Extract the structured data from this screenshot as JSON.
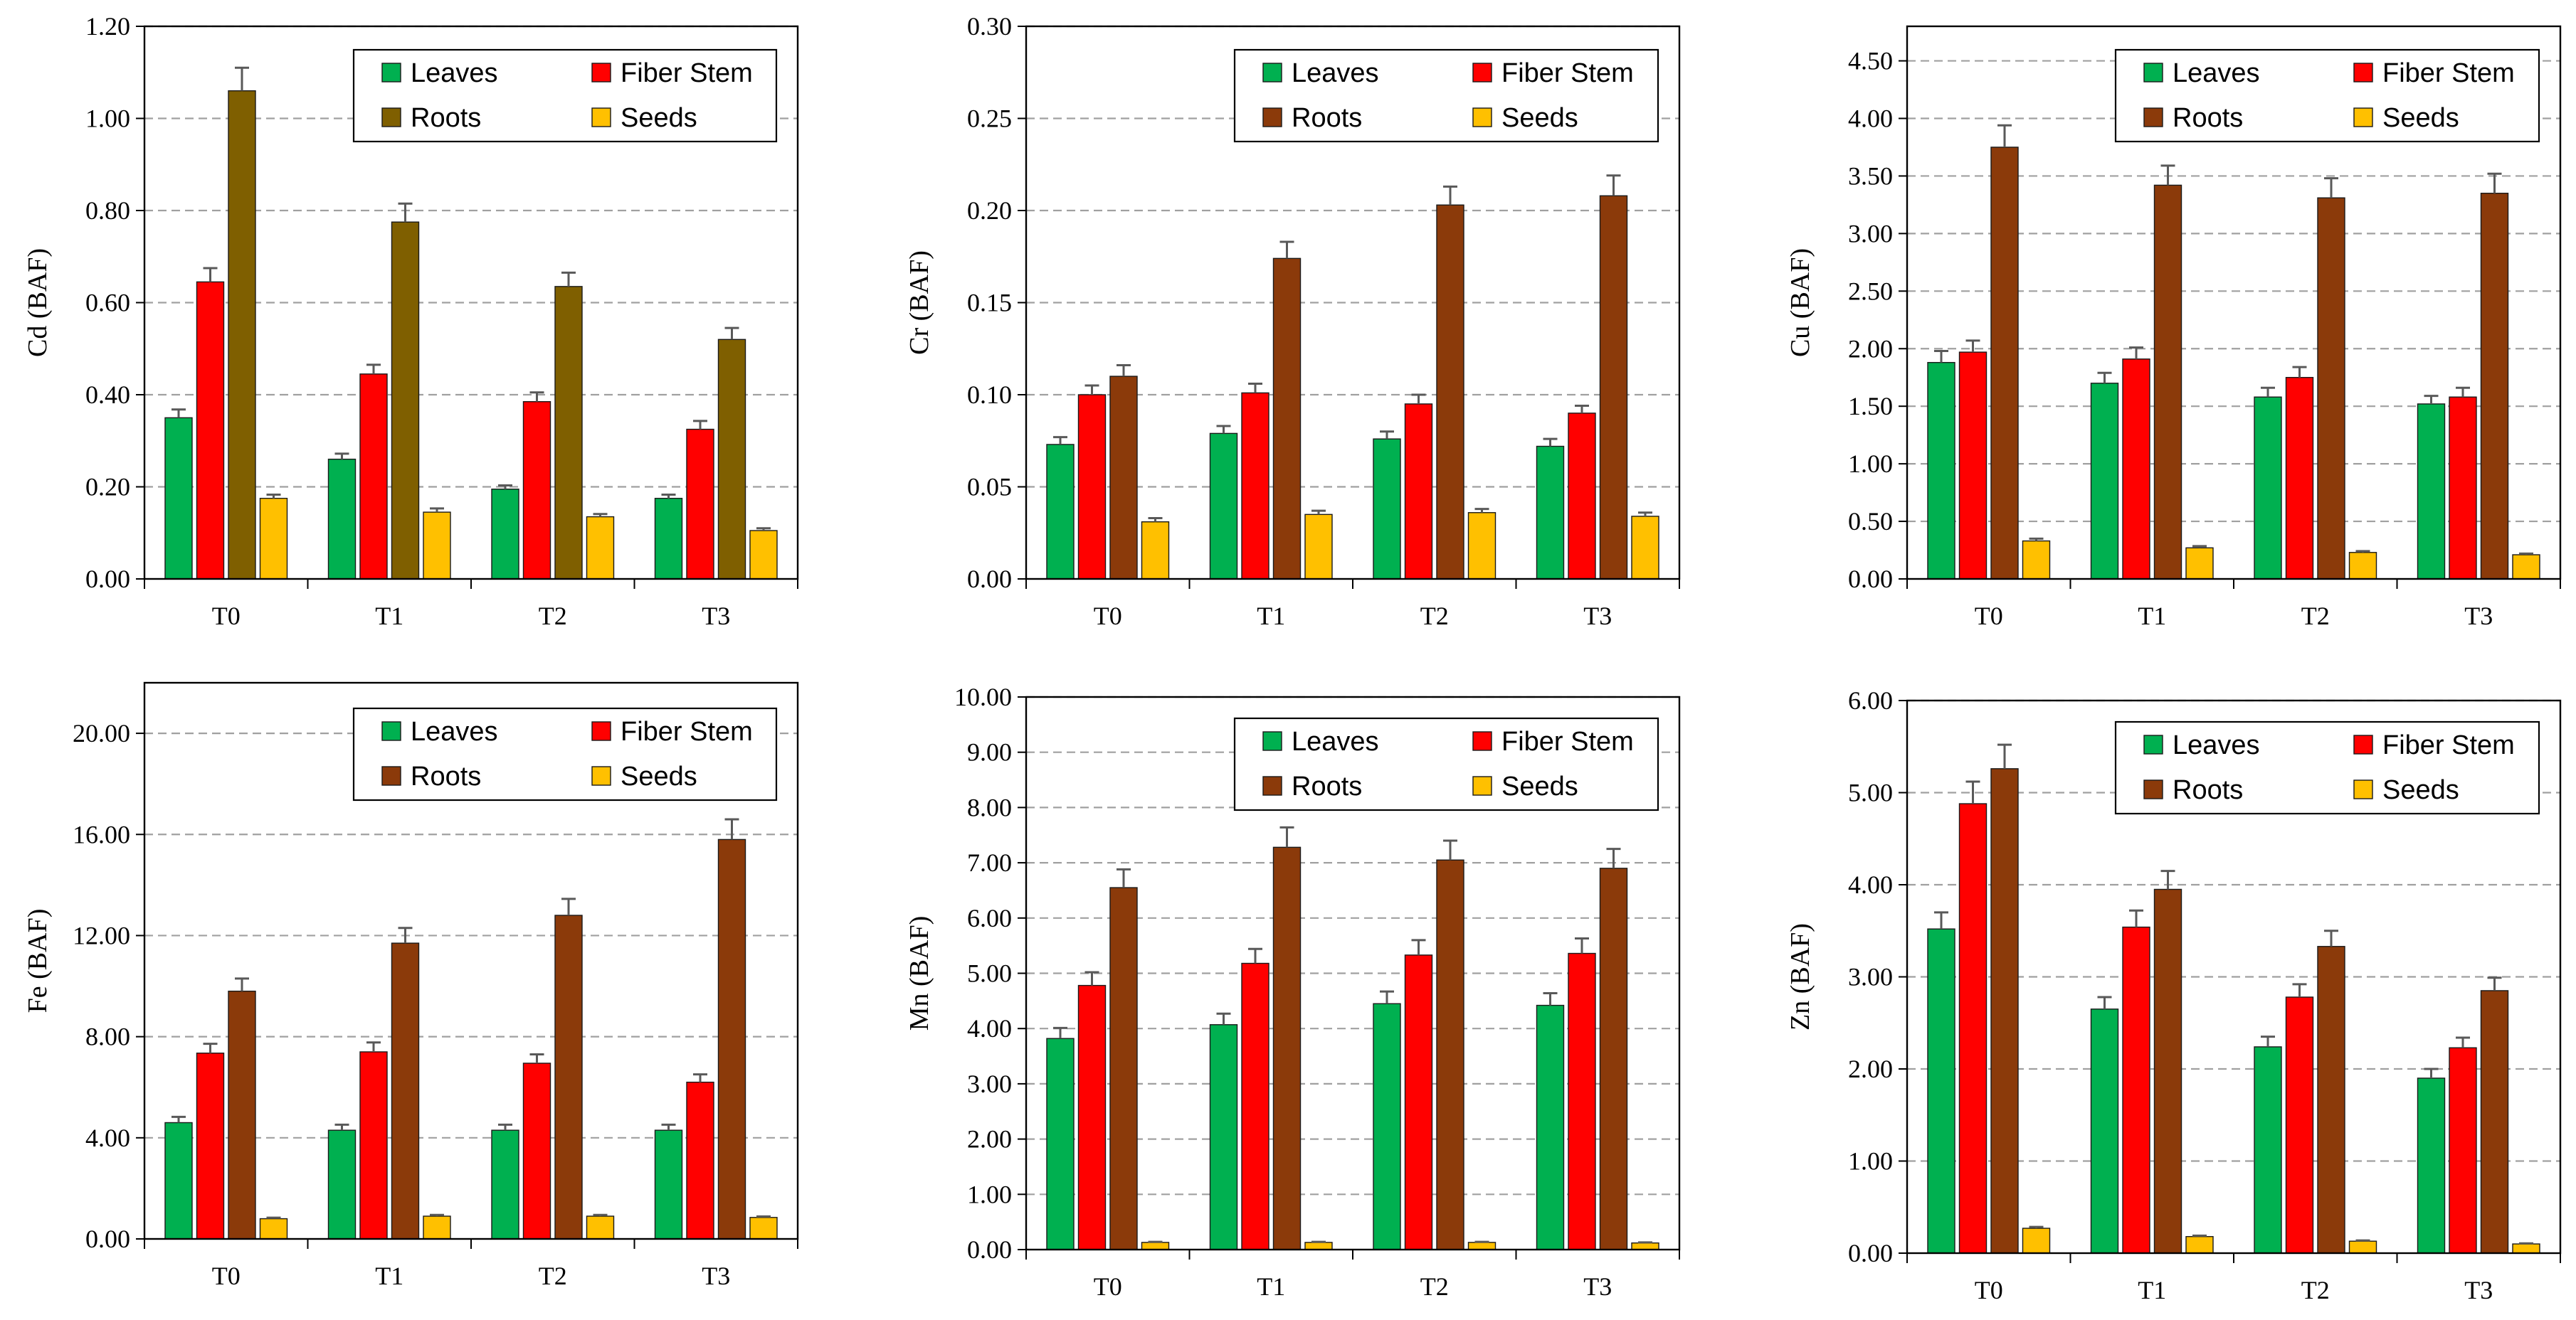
{
  "colors": {
    "leaves": "#00B050",
    "fiber_stem": "#FF0000",
    "roots_dark": "#8B3A0A",
    "roots_olive": "#7F5F00",
    "seeds": "#FFC000",
    "grid": "#A0A0A0",
    "error_bar": "#595959"
  },
  "chart_data": [
    {
      "type": "bar",
      "panel": "Cd",
      "ylabel": "Cd  (BAF)",
      "xlabel": "",
      "categories": [
        "T0",
        "T1",
        "T2",
        "T3"
      ],
      "ylim": [
        0,
        1.2
      ],
      "yticks": [
        "0.00",
        "0.20",
        "0.40",
        "0.60",
        "0.80",
        "1.00",
        "1.20"
      ],
      "grid": true,
      "legend": {
        "position": "top-right",
        "entries": [
          "Leaves",
          "Fiber Stem",
          "Roots",
          "Seeds"
        ]
      },
      "series": [
        {
          "name": "Leaves",
          "color_key": "leaves",
          "values": [
            0.35,
            0.26,
            0.195,
            0.175
          ],
          "errors": [
            0.018,
            0.012,
            0.008,
            0.008
          ]
        },
        {
          "name": "Fiber Stem",
          "color_key": "fiber_stem",
          "values": [
            0.645,
            0.445,
            0.385,
            0.325
          ],
          "errors": [
            0.03,
            0.02,
            0.02,
            0.018
          ]
        },
        {
          "name": "Roots",
          "color_key": "roots_olive",
          "values": [
            1.06,
            0.775,
            0.635,
            0.52
          ],
          "errors": [
            0.05,
            0.04,
            0.03,
            0.025
          ]
        },
        {
          "name": "Seeds",
          "color_key": "seeds",
          "values": [
            0.175,
            0.145,
            0.135,
            0.105
          ],
          "errors": [
            0.008,
            0.008,
            0.006,
            0.005
          ]
        }
      ]
    },
    {
      "type": "bar",
      "panel": "Cr",
      "ylabel": "Cr  (BAF)",
      "xlabel": "",
      "categories": [
        "T0",
        "T1",
        "T2",
        "T3"
      ],
      "ylim": [
        0,
        0.3
      ],
      "yticks": [
        "0.00",
        "0.05",
        "0.10",
        "0.15",
        "0.20",
        "0.25",
        "0.30"
      ],
      "grid": true,
      "legend": {
        "position": "top-right",
        "entries": [
          "Leaves",
          "Fiber Stem",
          "Roots",
          "Seeds"
        ]
      },
      "series": [
        {
          "name": "Leaves",
          "color_key": "leaves",
          "values": [
            0.073,
            0.079,
            0.076,
            0.072
          ],
          "errors": [
            0.004,
            0.004,
            0.004,
            0.004
          ]
        },
        {
          "name": "Fiber Stem",
          "color_key": "fiber_stem",
          "values": [
            0.1,
            0.101,
            0.095,
            0.09
          ],
          "errors": [
            0.005,
            0.005,
            0.005,
            0.004
          ]
        },
        {
          "name": "Roots",
          "color_key": "roots_dark",
          "values": [
            0.11,
            0.174,
            0.203,
            0.208
          ],
          "errors": [
            0.006,
            0.009,
            0.01,
            0.011
          ]
        },
        {
          "name": "Seeds",
          "color_key": "seeds",
          "values": [
            0.031,
            0.035,
            0.036,
            0.034
          ],
          "errors": [
            0.002,
            0.002,
            0.002,
            0.002
          ]
        }
      ]
    },
    {
      "type": "bar",
      "panel": "Cu",
      "ylabel": "Cu  (BAF)",
      "xlabel": "",
      "categories": [
        "T0",
        "T1",
        "T2",
        "T3"
      ],
      "ylim": [
        0,
        4.8
      ],
      "yticks": [
        "0.00",
        "0.50",
        "1.00",
        "1.50",
        "2.00",
        "2.50",
        "3.00",
        "3.50",
        "4.00",
        "4.50"
      ],
      "grid": true,
      "legend": {
        "position": "top-right",
        "entries": [
          "Leaves",
          "Fiber Stem",
          "Roots",
          "Seeds"
        ]
      },
      "series": [
        {
          "name": "Leaves",
          "color_key": "leaves",
          "values": [
            1.88,
            1.7,
            1.58,
            1.52
          ],
          "errors": [
            0.1,
            0.09,
            0.08,
            0.07
          ]
        },
        {
          "name": "Fiber Stem",
          "color_key": "fiber_stem",
          "values": [
            1.97,
            1.91,
            1.75,
            1.58
          ],
          "errors": [
            0.1,
            0.1,
            0.09,
            0.08
          ]
        },
        {
          "name": "Roots",
          "color_key": "roots_dark",
          "values": [
            3.75,
            3.42,
            3.31,
            3.35
          ],
          "errors": [
            0.19,
            0.17,
            0.17,
            0.17
          ]
        },
        {
          "name": "Seeds",
          "color_key": "seeds",
          "values": [
            0.33,
            0.27,
            0.23,
            0.21
          ],
          "errors": [
            0.02,
            0.015,
            0.012,
            0.01
          ]
        }
      ]
    },
    {
      "type": "bar",
      "panel": "Fe",
      "ylabel": "Fe  (BAF)",
      "xlabel": "",
      "categories": [
        "T0",
        "T1",
        "T2",
        "T3"
      ],
      "ylim": [
        0,
        22
      ],
      "yticks": [
        "0.00",
        "4.00",
        "8.00",
        "12.00",
        "16.00",
        "20.00"
      ],
      "grid": true,
      "legend": {
        "position": "top-right",
        "entries": [
          "Leaves",
          "Fiber Stem",
          "Roots",
          "Seeds"
        ]
      },
      "series": [
        {
          "name": "Leaves",
          "color_key": "leaves",
          "values": [
            4.6,
            4.3,
            4.3,
            4.3
          ],
          "errors": [
            0.23,
            0.22,
            0.22,
            0.22
          ]
        },
        {
          "name": "Fiber Stem",
          "color_key": "fiber_stem",
          "values": [
            7.35,
            7.4,
            6.95,
            6.2
          ],
          "errors": [
            0.37,
            0.37,
            0.35,
            0.31
          ]
        },
        {
          "name": "Roots",
          "color_key": "roots_dark",
          "values": [
            9.8,
            11.7,
            12.8,
            15.8
          ],
          "errors": [
            0.5,
            0.6,
            0.65,
            0.8
          ]
        },
        {
          "name": "Seeds",
          "color_key": "seeds",
          "values": [
            0.8,
            0.9,
            0.9,
            0.85
          ],
          "errors": [
            0.04,
            0.05,
            0.05,
            0.04
          ]
        }
      ]
    },
    {
      "type": "bar",
      "panel": "Mn",
      "ylabel": "Mn  (BAF)",
      "xlabel": "",
      "categories": [
        "T0",
        "T1",
        "T2",
        "T3"
      ],
      "ylim": [
        0,
        10
      ],
      "yticks": [
        "0.00",
        "1.00",
        "2.00",
        "3.00",
        "4.00",
        "5.00",
        "6.00",
        "7.00",
        "8.00",
        "9.00",
        "10.00"
      ],
      "grid": true,
      "legend": {
        "position": "top-right",
        "entries": [
          "Leaves",
          "Fiber Stem",
          "Roots",
          "Seeds"
        ]
      },
      "series": [
        {
          "name": "Leaves",
          "color_key": "leaves",
          "values": [
            3.82,
            4.07,
            4.45,
            4.42
          ],
          "errors": [
            0.19,
            0.2,
            0.22,
            0.22
          ]
        },
        {
          "name": "Fiber Stem",
          "color_key": "fiber_stem",
          "values": [
            4.78,
            5.18,
            5.33,
            5.36
          ],
          "errors": [
            0.24,
            0.26,
            0.27,
            0.27
          ]
        },
        {
          "name": "Roots",
          "color_key": "roots_dark",
          "values": [
            6.55,
            7.28,
            7.05,
            6.9
          ],
          "errors": [
            0.33,
            0.36,
            0.35,
            0.35
          ]
        },
        {
          "name": "Seeds",
          "color_key": "seeds",
          "values": [
            0.13,
            0.13,
            0.13,
            0.12
          ],
          "errors": [
            0.01,
            0.01,
            0.01,
            0.01
          ]
        }
      ]
    },
    {
      "type": "bar",
      "panel": "Zn",
      "ylabel": "Zn  (BAF)",
      "xlabel": "",
      "categories": [
        "T0",
        "T1",
        "T2",
        "T3"
      ],
      "ylim": [
        0,
        6
      ],
      "yticks": [
        "0.00",
        "1.00",
        "2.00",
        "3.00",
        "4.00",
        "5.00",
        "6.00"
      ],
      "grid": true,
      "legend": {
        "position": "top-right",
        "entries": [
          "Leaves",
          "Fiber Stem",
          "Roots",
          "Seeds"
        ]
      },
      "series": [
        {
          "name": "Leaves",
          "color_key": "leaves",
          "values": [
            3.52,
            2.65,
            2.24,
            1.9
          ],
          "errors": [
            0.18,
            0.13,
            0.11,
            0.1
          ]
        },
        {
          "name": "Fiber Stem",
          "color_key": "fiber_stem",
          "values": [
            4.88,
            3.54,
            2.78,
            2.23
          ],
          "errors": [
            0.24,
            0.18,
            0.14,
            0.11
          ]
        },
        {
          "name": "Roots",
          "color_key": "roots_dark",
          "values": [
            5.26,
            3.95,
            3.33,
            2.85
          ],
          "errors": [
            0.26,
            0.2,
            0.17,
            0.14
          ]
        },
        {
          "name": "Seeds",
          "color_key": "seeds",
          "values": [
            0.27,
            0.18,
            0.13,
            0.1
          ],
          "errors": [
            0.015,
            0.01,
            0.008,
            0.006
          ]
        }
      ]
    }
  ]
}
